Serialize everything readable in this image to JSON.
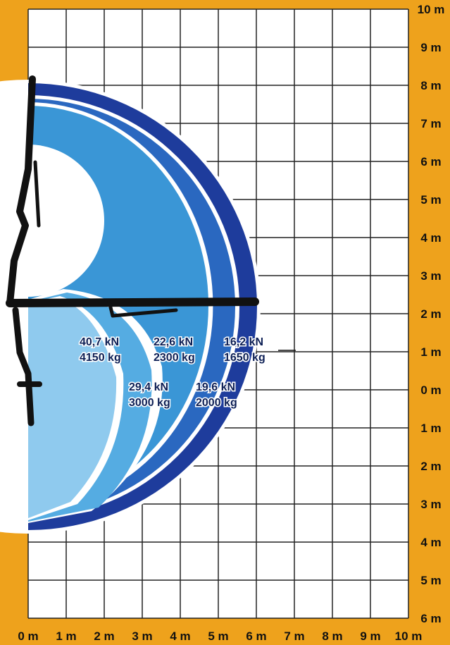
{
  "axes": {
    "x_labels": [
      "0 m",
      "1 m",
      "2 m",
      "3 m",
      "4 m",
      "5 m",
      "6 m",
      "7 m",
      "8 m",
      "9 m",
      "10 m"
    ],
    "y_labels": [
      "10 m",
      "9 m",
      "8 m",
      "7 m",
      "6 m",
      "5 m",
      "4 m",
      "3 m",
      "2 m",
      "1 m",
      "0 m",
      "1 m",
      "2 m",
      "3 m",
      "4 m",
      "5 m",
      "6 m"
    ]
  },
  "zones": [
    {
      "force": "40,7 kN",
      "mass": "4150 kg"
    },
    {
      "force": "29,4 kN",
      "mass": "3000 kg"
    },
    {
      "force": "22,6 kN",
      "mass": "2300 kg"
    },
    {
      "force": "19,6 kN",
      "mass": "2000 kg"
    },
    {
      "force": "16,2 kN",
      "mass": "1650 kg"
    }
  ]
}
